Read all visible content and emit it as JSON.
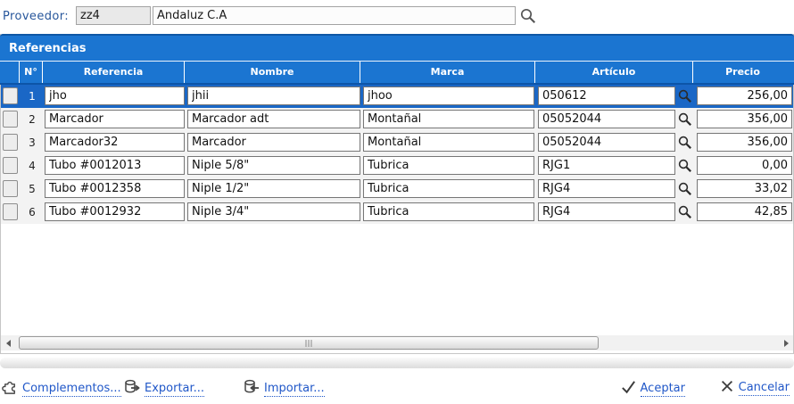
{
  "colors": {
    "accent_blue": "#1b75d1",
    "selected_row_blue": "#1a67c6",
    "panel_top_edge": "#0e57a5",
    "link_blue": "#2057c8",
    "label_blue": "#27569b",
    "icon_gray": "#474747"
  },
  "topbar": {
    "proveedor_label": "Proveedor:",
    "code_value": "zz4",
    "name_value": "Andaluz C.A"
  },
  "panel": {
    "title": "Referencias"
  },
  "table": {
    "headers": [
      "N°",
      "Referencia",
      "Nombre",
      "Marca",
      "Artículo",
      "Precio"
    ],
    "rows": [
      {
        "num": "1",
        "referencia": "jho",
        "nombre": "jhii",
        "marca": "jhoo",
        "articulo": "050612",
        "precio": "256,00",
        "selected": true
      },
      {
        "num": "2",
        "referencia": "Marcador",
        "nombre": "Marcador adt",
        "marca": "Montañal",
        "articulo": "05052044",
        "precio": "356,00",
        "selected": false
      },
      {
        "num": "3",
        "referencia": "Marcador32",
        "nombre": "Marcador",
        "marca": "Montañal",
        "articulo": "05052044",
        "precio": "356,00",
        "selected": false
      },
      {
        "num": "4",
        "referencia": "Tubo #0012013",
        "nombre": "Niple 5/8\"",
        "marca": "Tubrica",
        "articulo": "RJG1",
        "precio": "0,00",
        "selected": false
      },
      {
        "num": "5",
        "referencia": "Tubo #0012358",
        "nombre": "Niple 1/2\"",
        "marca": "Tubrica",
        "articulo": "RJG4",
        "precio": "33,02",
        "selected": false
      },
      {
        "num": "6",
        "referencia": "Tubo #0012932",
        "nombre": "Niple 3/4\"",
        "marca": "Tubrica",
        "articulo": "RJG4",
        "precio": "42,85",
        "selected": false
      }
    ]
  },
  "toolbar": {
    "complementos_label": "Complementos...",
    "exportar_label": "Exportar...",
    "importar_label": "Importar...",
    "aceptar_label": "Aceptar",
    "cancelar_label": "Cancelar"
  }
}
